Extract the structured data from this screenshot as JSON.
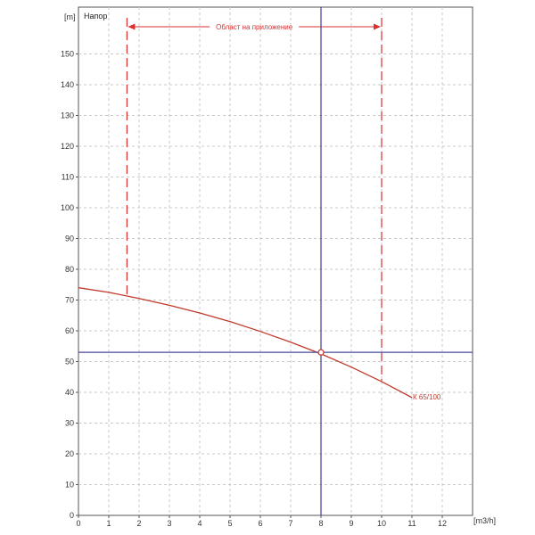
{
  "chart_data": {
    "type": "line",
    "title": "Напор",
    "xlabel": "[m3/h]",
    "ylabel": "[m]",
    "xlim": [
      0,
      13
    ],
    "ylim": [
      0,
      165
    ],
    "x_ticks": [
      0,
      1,
      2,
      3,
      4,
      5,
      6,
      7,
      8,
      9,
      10,
      11,
      12
    ],
    "y_ticks": [
      0,
      10,
      20,
      30,
      40,
      50,
      60,
      70,
      80,
      90,
      100,
      110,
      120,
      130,
      140,
      150
    ],
    "grid": true,
    "series": [
      {
        "name": "К 65/100",
        "x": [
          0,
          1,
          2,
          3,
          4,
          5,
          6,
          7,
          8,
          9,
          10,
          11
        ],
        "y": [
          74,
          72.5,
          70.5,
          68.3,
          65.8,
          63,
          59.8,
          56.3,
          52.5,
          48.2,
          43.5,
          38.3
        ]
      }
    ],
    "application_range": {
      "label": "Област на приложение",
      "x_min": 1.6,
      "x_max": 10,
      "y_min": 71.2,
      "y_max": 43.8
    },
    "operating_point": {
      "x": 8,
      "y": 53
    },
    "colors": {
      "curve": "#c0392b",
      "range": "#d93030",
      "crosshair": "#4a4a9a",
      "grid": "#c8c8c8",
      "axis": "#555555"
    }
  }
}
